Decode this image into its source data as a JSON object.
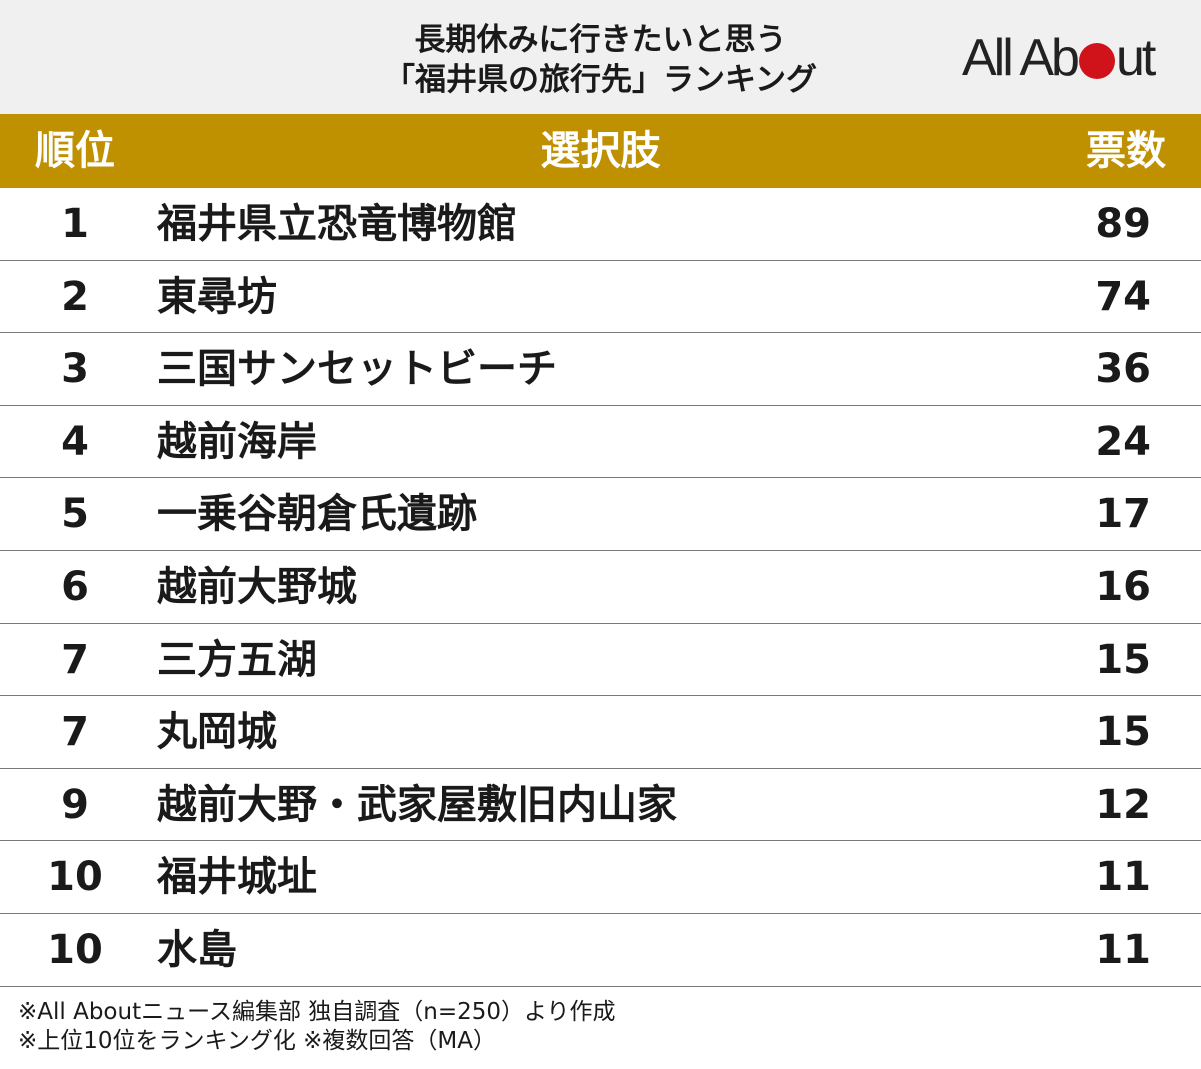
{
  "title_line1": "長期休みに行きたいと思う",
  "title_line2": "「福井県の旅行先」ランキング",
  "logo": {
    "text_left": "All Ab",
    "text_right": "ut",
    "dot_color": "#d0121b"
  },
  "header_color": "#bf9000",
  "columns": {
    "rank": "順位",
    "choice": "選択肢",
    "votes": "票数"
  },
  "chart_data": {
    "type": "table",
    "title": "長期休みに行きたいと思う「福井県の旅行先」ランキング",
    "columns": [
      "順位",
      "選択肢",
      "票数"
    ],
    "rows": [
      {
        "rank": "1",
        "name": "福井県立恐竜博物館",
        "votes": "89"
      },
      {
        "rank": "2",
        "name": "東尋坊",
        "votes": "74"
      },
      {
        "rank": "3",
        "name": "三国サンセットビーチ",
        "votes": "36"
      },
      {
        "rank": "4",
        "name": "越前海岸",
        "votes": "24"
      },
      {
        "rank": "5",
        "name": "一乗谷朝倉氏遺跡",
        "votes": "17"
      },
      {
        "rank": "6",
        "name": "越前大野城",
        "votes": "16"
      },
      {
        "rank": "7",
        "name": "三方五湖",
        "votes": "15"
      },
      {
        "rank": "7",
        "name": "丸岡城",
        "votes": "15"
      },
      {
        "rank": "9",
        "name": "越前大野・武家屋敷旧内山家",
        "votes": "12"
      },
      {
        "rank": "10",
        "name": "福井城址",
        "votes": "11"
      },
      {
        "rank": "10",
        "name": "水島",
        "votes": "11"
      }
    ]
  },
  "notes": [
    "※All Aboutニュース編集部 独自調査（n=250）より作成",
    "※上位10位をランキング化 ※複数回答（MA）"
  ]
}
